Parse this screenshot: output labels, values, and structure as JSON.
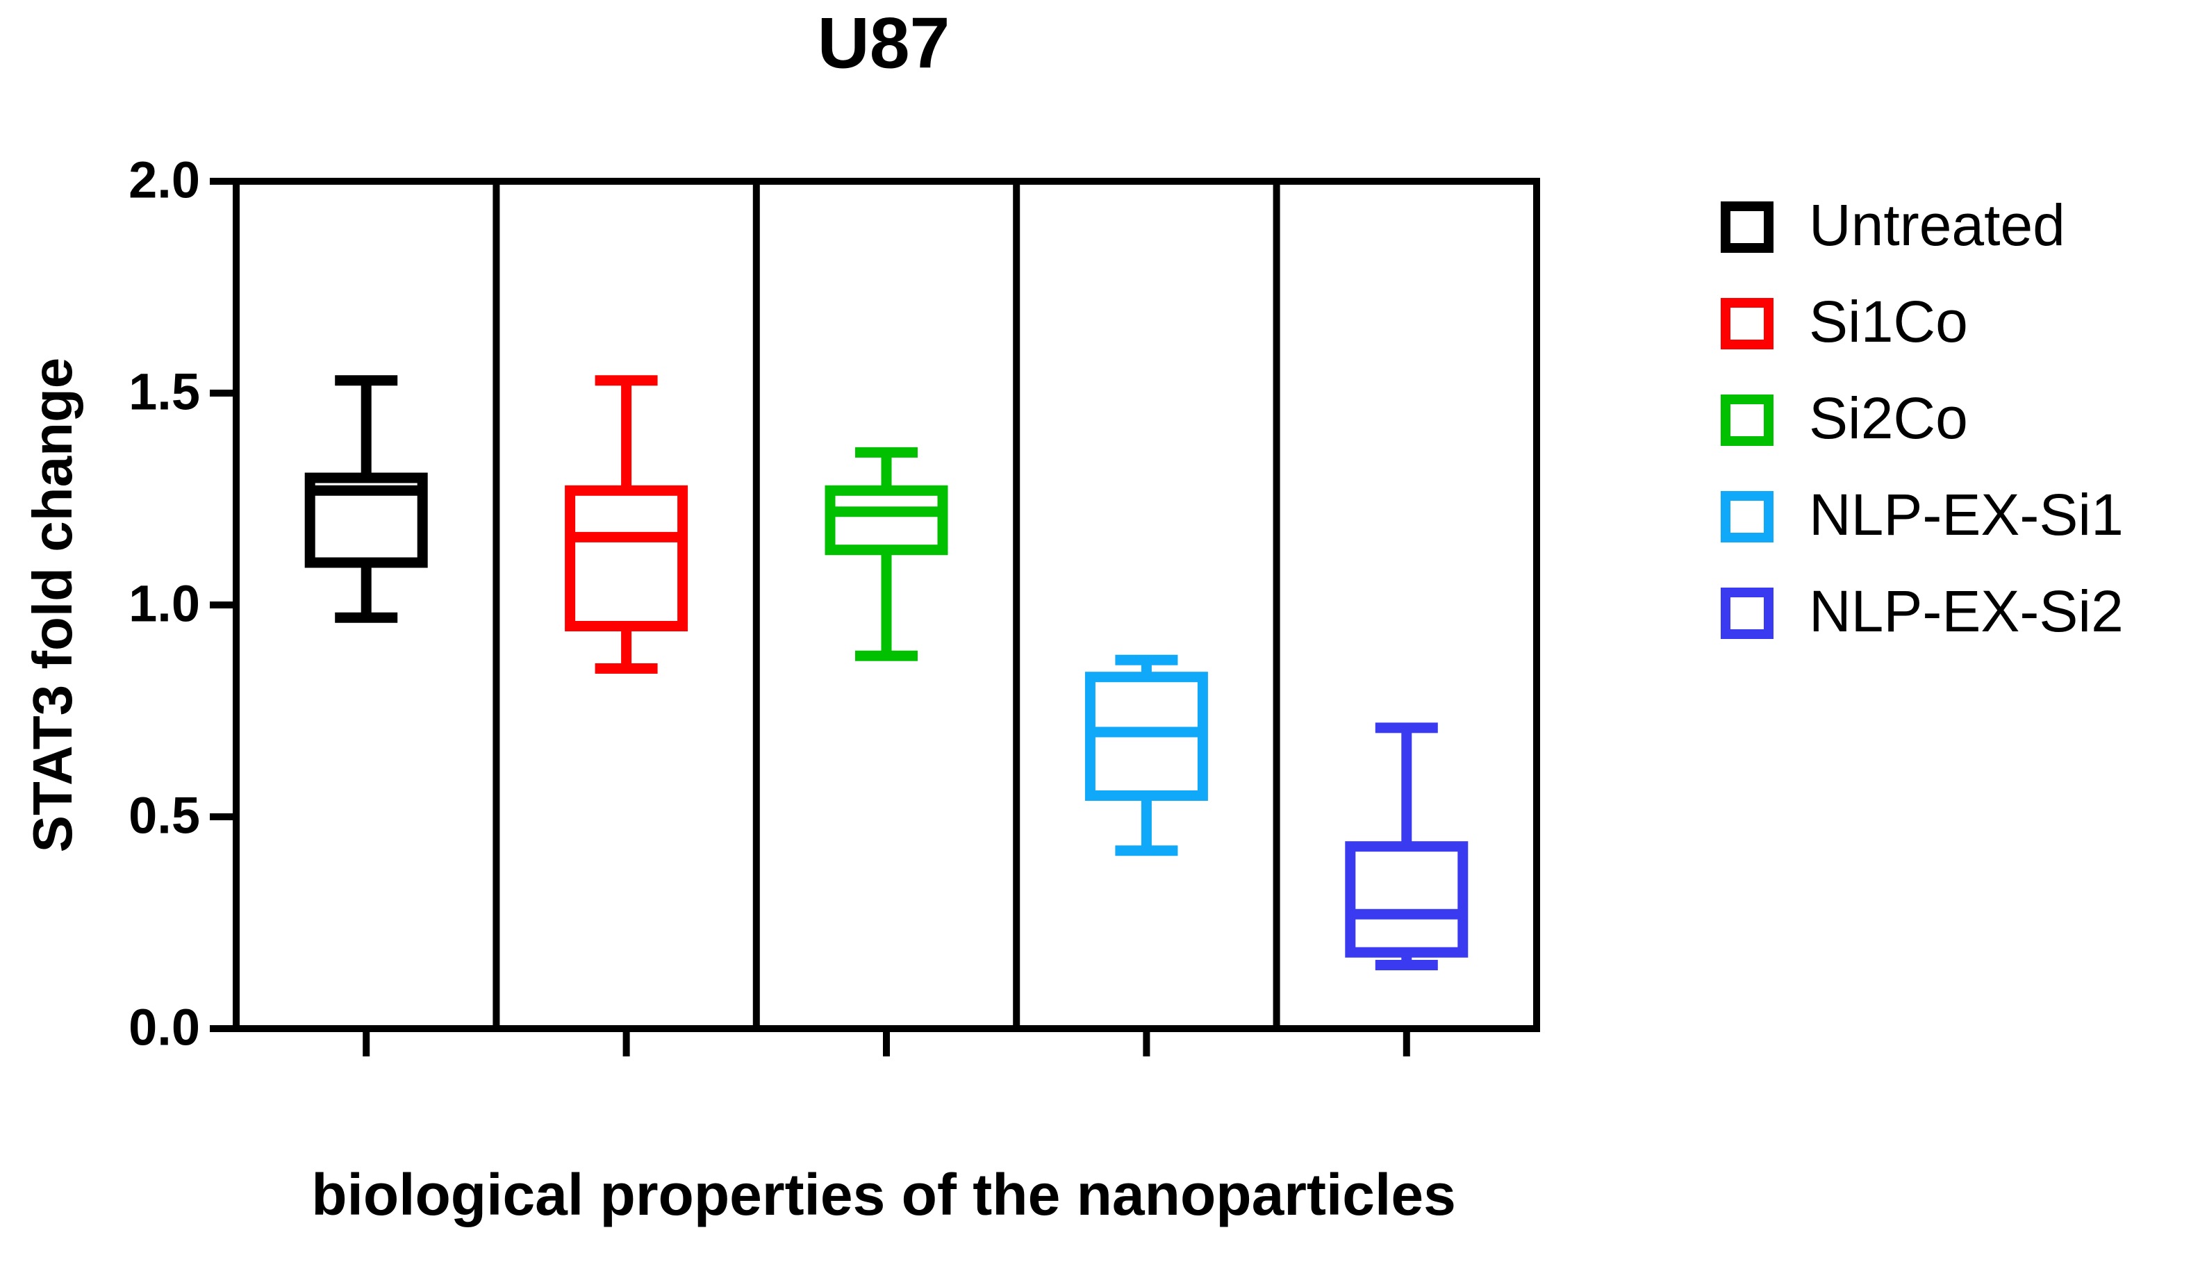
{
  "chart_data": {
    "type": "box",
    "title": "U87",
    "y_label": "STAT3 fold change",
    "x_label": "biological properties of the nanoparticles",
    "ylim": [
      0,
      2
    ],
    "yticks": [
      {
        "value": 0,
        "label": "0.0"
      },
      0.5,
      {
        "value": 1,
        "label": "1.0"
      },
      1.5,
      {
        "value": 2,
        "label": "2.0"
      }
    ],
    "series": [
      {
        "name": "Untreated",
        "color": "#000000",
        "min": 0.97,
        "q1": 1.1,
        "median": 1.27,
        "q3": 1.3,
        "max": 1.53
      },
      {
        "name": "Si1Co",
        "color": "#ff0000",
        "min": 0.85,
        "q1": 0.95,
        "median": 1.16,
        "q3": 1.27,
        "max": 1.53
      },
      {
        "name": "Si2Co",
        "color": "#00c000",
        "min": 0.88,
        "q1": 1.13,
        "median": 1.22,
        "q3": 1.27,
        "max": 1.36
      },
      {
        "name": "NLP-EX-Si1",
        "color": "#10a8f8",
        "min": 0.42,
        "q1": 0.55,
        "median": 0.7,
        "q3": 0.83,
        "max": 0.87
      },
      {
        "name": "NLP-EX-Si2",
        "color": "#3a3af0",
        "min": 0.15,
        "q1": 0.18,
        "median": 0.27,
        "q3": 0.43,
        "max": 0.71
      }
    ]
  }
}
